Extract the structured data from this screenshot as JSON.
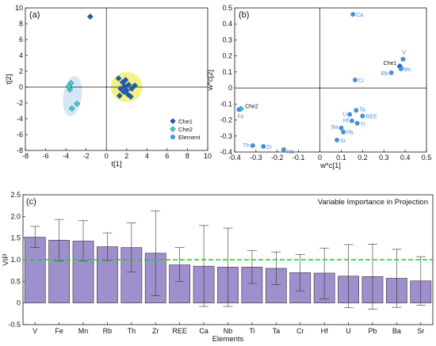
{
  "panel_a": {
    "label": "(a)",
    "xlabel": "t[1]",
    "ylabel": "t[2]",
    "legend": [
      {
        "name": "Che1",
        "marker": "diamond",
        "color": "#1f5fb0"
      },
      {
        "name": "Che2",
        "marker": "diamond",
        "color": "#40d0c8"
      },
      {
        "name": "Element",
        "marker": "circle",
        "color": "#4a90d9"
      }
    ]
  },
  "panel_b": {
    "label": "(b)",
    "xlabel": "w*c[1]",
    "ylabel": "w*c[2]"
  },
  "panel_c": {
    "label": "(c)",
    "title": "Variable Importance in Projection",
    "xlabel": "Elements",
    "ylabel": "VIP"
  },
  "chart_data": [
    {
      "type": "scatter",
      "panel": "(a)",
      "xlim": [
        -8,
        10
      ],
      "ylim": [
        -8,
        10
      ],
      "xticks": [
        -8,
        -6,
        -4,
        -2,
        0,
        2,
        4,
        6,
        8,
        10
      ],
      "yticks": [
        -8,
        -6,
        -4,
        -2,
        0,
        2,
        4,
        6,
        8,
        10
      ],
      "xlabel": "t[1]",
      "ylabel": "t[2]",
      "legend_position": "bottom-right",
      "series": [
        {
          "name": "Che1",
          "color": "#1f5fb0",
          "points": [
            [
              -1.6,
              8.9
            ],
            [
              1.2,
              1.1
            ],
            [
              1.4,
              -0.2
            ],
            [
              1.6,
              0.6
            ],
            [
              1.8,
              0.1
            ],
            [
              2.0,
              -0.4
            ],
            [
              2.2,
              0.3
            ],
            [
              1.7,
              -0.6
            ],
            [
              2.5,
              -0.2
            ],
            [
              1.3,
              -1.1
            ],
            [
              2.4,
              -1.2
            ],
            [
              2.8,
              0.2
            ],
            [
              1.9,
              0.9
            ],
            [
              2.1,
              -0.9
            ]
          ]
        },
        {
          "name": "Che2",
          "color": "#40d0c8",
          "points": [
            [
              -3.5,
              0.5
            ],
            [
              -3.6,
              -0.3
            ],
            [
              -3.4,
              -2.7
            ],
            [
              -2.9,
              -2.1
            ],
            [
              -3.7,
              0.1
            ]
          ]
        }
      ]
    },
    {
      "type": "scatter",
      "panel": "(b)",
      "xlim": [
        -0.4,
        0.5
      ],
      "ylim": [
        -0.4,
        0.5
      ],
      "xticks": [
        -0.4,
        -0.3,
        -0.2,
        -0.1,
        0,
        0.1,
        0.2,
        0.3,
        0.4,
        0.5
      ],
      "yticks": [
        -0.4,
        -0.3,
        -0.2,
        -0.1,
        0,
        0.1,
        0.2,
        0.3,
        0.4,
        0.5
      ],
      "xlabel": "w*c[1]",
      "ylabel": "w*c[2]",
      "series": [
        {
          "name": "Che1",
          "color": "#1f5fb0",
          "points": [
            {
              "label": "Che1",
              "x": 0.375,
              "y": 0.135
            }
          ]
        },
        {
          "name": "Che2",
          "color": "#40d0c8",
          "points": [
            {
              "label": "Che2",
              "x": -0.37,
              "y": -0.13
            }
          ]
        },
        {
          "name": "Element",
          "color": "#4a90d9",
          "points": [
            {
              "label": "Ca",
              "x": 0.155,
              "y": 0.46
            },
            {
              "label": "V",
              "x": 0.39,
              "y": 0.18
            },
            {
              "label": "Mn",
              "x": 0.38,
              "y": 0.12
            },
            {
              "label": "Rb",
              "x": 0.335,
              "y": 0.095
            },
            {
              "label": "Cr",
              "x": 0.165,
              "y": 0.05
            },
            {
              "label": "Ta",
              "x": 0.17,
              "y": -0.14
            },
            {
              "label": "U",
              "x": 0.14,
              "y": -0.165
            },
            {
              "label": "REE",
              "x": 0.2,
              "y": -0.175
            },
            {
              "label": "Hf",
              "x": 0.15,
              "y": -0.205
            },
            {
              "label": "Ti",
              "x": 0.175,
              "y": -0.22
            },
            {
              "label": "Ba",
              "x": 0.1,
              "y": -0.25
            },
            {
              "label": "Pb",
              "x": 0.11,
              "y": -0.275
            },
            {
              "label": "Sr",
              "x": 0.08,
              "y": -0.325
            },
            {
              "label": "Th",
              "x": -0.315,
              "y": -0.36
            },
            {
              "label": "Zr",
              "x": -0.265,
              "y": -0.365
            },
            {
              "label": "Nb",
              "x": -0.17,
              "y": -0.385
            },
            {
              "label": "Fe",
              "x": -0.38,
              "y": -0.135
            }
          ]
        }
      ]
    },
    {
      "type": "bar",
      "panel": "(c)",
      "title": "Variable Importance in Projection",
      "xlabel": "Elements",
      "ylabel": "VIP",
      "ylim": [
        -0.5,
        2.5
      ],
      "yticks": [
        -0.5,
        0,
        0.5,
        1.0,
        1.5,
        2.0,
        2.5
      ],
      "threshold": 1.0,
      "threshold_color": "#22cc22",
      "bar_color": "#9f8fcc",
      "categories": [
        "V",
        "Fe",
        "Mn",
        "Rb",
        "Th",
        "Zr",
        "REE",
        "Ca",
        "Nb",
        "Ti",
        "Ta",
        "Cr",
        "Hf",
        "U",
        "Pb",
        "Ba",
        "Sr"
      ],
      "values": [
        1.52,
        1.45,
        1.43,
        1.3,
        1.28,
        1.15,
        0.88,
        0.85,
        0.83,
        0.83,
        0.8,
        0.7,
        0.69,
        0.62,
        0.61,
        0.57,
        0.51
      ],
      "error_upper": [
        1.77,
        1.93,
        1.9,
        1.62,
        1.85,
        2.13,
        1.28,
        1.79,
        1.73,
        1.21,
        1.18,
        1.12,
        1.27,
        1.35,
        1.36,
        1.24,
        1.07
      ],
      "error_lower": [
        1.28,
        0.97,
        0.97,
        0.98,
        0.72,
        0.17,
        0.5,
        -0.08,
        -0.08,
        0.45,
        0.42,
        0.28,
        0.09,
        -0.11,
        -0.14,
        -0.1,
        -0.05
      ]
    }
  ]
}
